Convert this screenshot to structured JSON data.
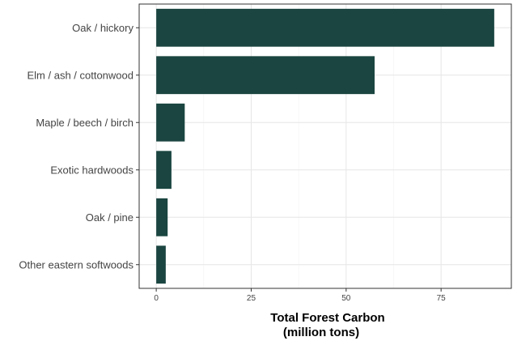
{
  "chart_data": {
    "type": "bar",
    "orientation": "horizontal",
    "categories": [
      "Oak / hickory",
      "Elm / ash / cottonwood",
      "Maple / beech / birch",
      "Exotic hardwoods",
      "Oak / pine",
      "Other eastern softwoods"
    ],
    "values": [
      89,
      57.5,
      7.5,
      4,
      3,
      2.5
    ],
    "xticks": [
      "0",
      "25",
      "50",
      "75"
    ],
    "xlabel_line1": "Total Forest Carbon",
    "xlabel_line2": "(million tons)",
    "xlim": [
      -4.5,
      93.5
    ],
    "grid": true,
    "bar_color": "#1a4540"
  }
}
